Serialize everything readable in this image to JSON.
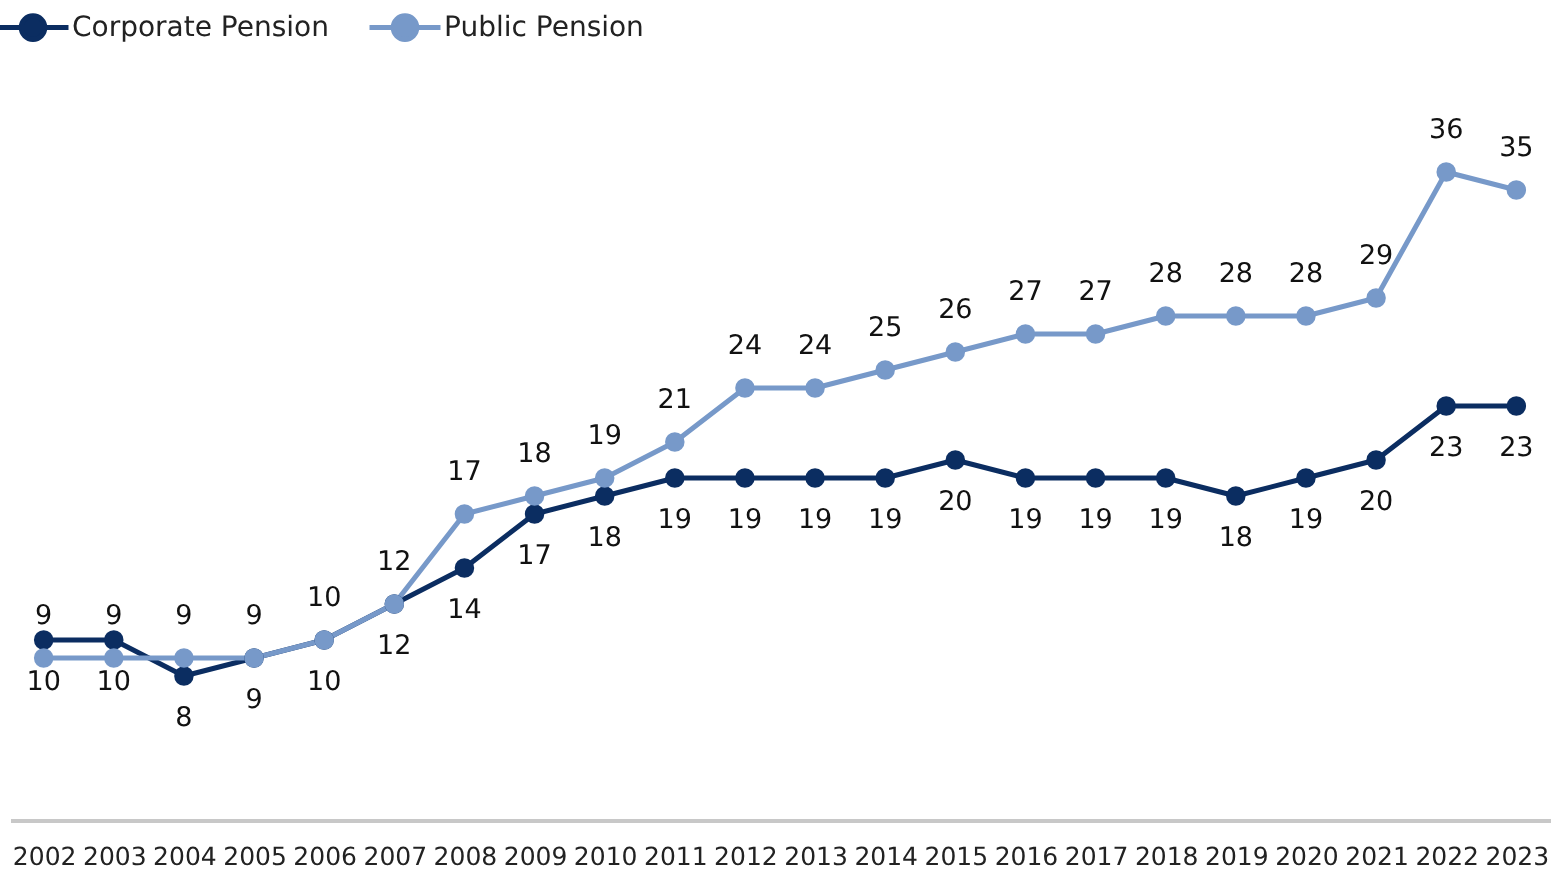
{
  "chart_data": {
    "type": "line",
    "categories": [
      "2002",
      "2003",
      "2004",
      "2005",
      "2006",
      "2007",
      "2008",
      "2009",
      "2010",
      "2011",
      "2012",
      "2013",
      "2014",
      "2015",
      "2016",
      "2017",
      "2018",
      "2019",
      "2020",
      "2021",
      "2022",
      "2023"
    ],
    "series": [
      {
        "name": "Corporate Pension",
        "color": "#0b2d61",
        "values": [
          10,
          10,
          8,
          9,
          10,
          12,
          14,
          17,
          18,
          19,
          19,
          19,
          19,
          20,
          19,
          19,
          19,
          18,
          19,
          20,
          23,
          23
        ]
      },
      {
        "name": "Public Pension",
        "color": "#7799c9",
        "values": [
          9,
          9,
          9,
          9,
          10,
          12,
          17,
          18,
          19,
          21,
          24,
          24,
          25,
          26,
          27,
          27,
          28,
          28,
          28,
          29,
          36,
          35
        ]
      }
    ],
    "tick_labels": "x",
    "data_labels": true,
    "legend": "top left",
    "marker": "circle",
    "line_style": "solid"
  }
}
